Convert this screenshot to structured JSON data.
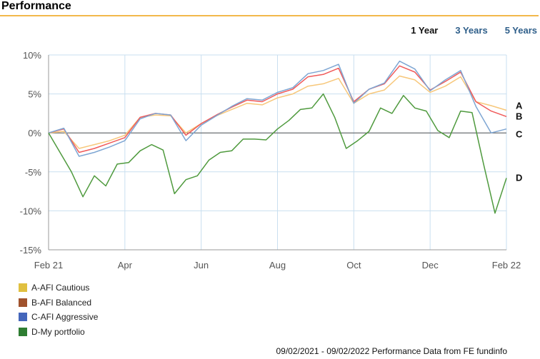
{
  "header": {
    "title": "Performance"
  },
  "periods": [
    {
      "label": "1 Year",
      "active": true
    },
    {
      "label": "3 Years",
      "active": false
    },
    {
      "label": "5 Years",
      "active": false
    }
  ],
  "footer": {
    "text": "09/02/2021 - 09/02/2022 Performance Data from FE fundinfo"
  },
  "colors": {
    "accent_rule": "#f2b84b",
    "link": "#2f5f8a"
  },
  "chart_data": {
    "type": "line",
    "ylim": [
      -15,
      10
    ],
    "yticks": [
      10,
      5,
      0,
      -5,
      -10,
      -15
    ],
    "ytick_labels": [
      "10%",
      "5%",
      "0%",
      "-5%",
      "-10%",
      "-15%"
    ],
    "xlim": [
      0,
      12
    ],
    "xticks": [
      0,
      2,
      4,
      6,
      8,
      10,
      12
    ],
    "xtick_labels": [
      "Feb 21",
      "Apr",
      "Jun",
      "Aug",
      "Oct",
      "Dec",
      "Feb 22"
    ],
    "grid": true,
    "legend": "bottom-left",
    "series": [
      {
        "name": "A-AFI Cautious",
        "end_label": "A",
        "line_color": "#f7c77a",
        "swatch_color": "#e0c040",
        "x": [
          0,
          0.4,
          0.8,
          1.2,
          1.6,
          2,
          2.4,
          2.8,
          3.2,
          3.6,
          4,
          4.4,
          4.8,
          5.2,
          5.6,
          6,
          6.4,
          6.8,
          7.2,
          7.6,
          8,
          8.4,
          8.8,
          9.2,
          9.6,
          10,
          10.4,
          10.8,
          11.2,
          11.6,
          12
        ],
        "values": [
          0,
          0.2,
          -2.0,
          -1.5,
          -1.0,
          -0.3,
          2.0,
          2.3,
          2.2,
          0.0,
          1.2,
          2.2,
          3.0,
          3.8,
          3.6,
          4.5,
          5.0,
          6.0,
          6.3,
          7.0,
          3.8,
          5.0,
          5.5,
          7.3,
          6.8,
          5.2,
          6.0,
          7.2,
          4.0,
          3.5,
          2.9
        ]
      },
      {
        "name": "B-AFI Balanced",
        "end_label": "B",
        "line_color": "#f05a5a",
        "swatch_color": "#a0522d",
        "x": [
          0,
          0.4,
          0.8,
          1.2,
          1.6,
          2,
          2.4,
          2.8,
          3.2,
          3.6,
          4,
          4.4,
          4.8,
          5.2,
          5.6,
          6,
          6.4,
          6.8,
          7.2,
          7.6,
          8,
          8.4,
          8.8,
          9.2,
          9.6,
          10,
          10.4,
          10.8,
          11.2,
          11.6,
          12
        ],
        "values": [
          0,
          0.5,
          -2.5,
          -2.0,
          -1.3,
          -0.6,
          2.0,
          2.5,
          2.3,
          -0.3,
          1.2,
          2.3,
          3.3,
          4.2,
          4.0,
          5.0,
          5.6,
          7.2,
          7.5,
          8.3,
          4.0,
          5.6,
          6.3,
          8.6,
          7.8,
          5.5,
          6.6,
          7.8,
          4.0,
          2.8,
          2.1
        ]
      },
      {
        "name": "C-AFI Aggressive",
        "end_label": "C",
        "line_color": "#7ea6d3",
        "swatch_color": "#4466bb",
        "x": [
          0,
          0.4,
          0.8,
          1.2,
          1.6,
          2,
          2.4,
          2.8,
          3.2,
          3.6,
          4,
          4.4,
          4.8,
          5.2,
          5.6,
          6,
          6.4,
          6.8,
          7.2,
          7.6,
          8,
          8.4,
          8.8,
          9.2,
          9.6,
          10,
          10.4,
          10.8,
          11.2,
          11.6,
          12
        ],
        "values": [
          0,
          0.6,
          -3.0,
          -2.5,
          -1.8,
          -1.0,
          1.8,
          2.5,
          2.3,
          -1.0,
          1.0,
          2.2,
          3.4,
          4.4,
          4.2,
          5.2,
          5.8,
          7.6,
          8.0,
          8.8,
          3.8,
          5.6,
          6.4,
          9.2,
          8.2,
          5.4,
          6.8,
          8.0,
          3.4,
          0.0,
          0.5
        ]
      },
      {
        "name": "D-My portfolio",
        "end_label": "D",
        "line_color": "#4f9a3e",
        "swatch_color": "#2e7d32",
        "x": [
          0,
          0.3,
          0.6,
          0.9,
          1.2,
          1.5,
          1.8,
          2.1,
          2.4,
          2.7,
          3.0,
          3.3,
          3.6,
          3.9,
          4.2,
          4.5,
          4.8,
          5.1,
          5.4,
          5.7,
          6.0,
          6.3,
          6.6,
          6.9,
          7.2,
          7.5,
          7.8,
          8.1,
          8.4,
          8.7,
          9.0,
          9.3,
          9.6,
          9.9,
          10.2,
          10.5,
          10.8,
          11.1,
          11.4,
          11.7,
          12
        ],
        "values": [
          0,
          -2.5,
          -5.0,
          -8.2,
          -5.5,
          -6.8,
          -4.0,
          -3.8,
          -2.3,
          -1.5,
          -2.2,
          -7.8,
          -6.0,
          -5.5,
          -3.5,
          -2.5,
          -2.3,
          -0.8,
          -0.8,
          -0.9,
          0.5,
          1.6,
          3.0,
          3.2,
          5.0,
          2.0,
          -2.0,
          -1.0,
          0.2,
          3.2,
          2.5,
          4.8,
          3.2,
          2.8,
          0.3,
          -0.6,
          2.8,
          2.6,
          -4.0,
          -10.3,
          -5.8
        ]
      }
    ]
  }
}
